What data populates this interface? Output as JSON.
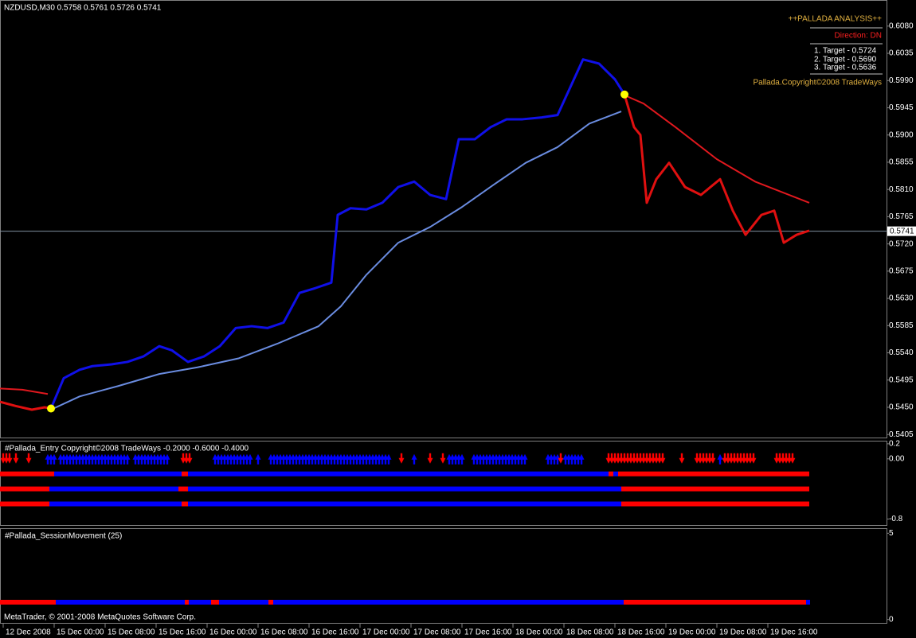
{
  "chart_data": [
    {
      "type": "line",
      "title": "NZDUSD,M30  0.5758 0.5761 0.5726 0.5741",
      "xlim": [
        -17,
        261.25
      ],
      "xticks": [
        {
          "value": -16,
          "label": "12 Dec 2008"
        },
        {
          "value": 0,
          "label": "15 Dec 00:00"
        },
        {
          "value": 16,
          "label": "15 Dec 08:00"
        },
        {
          "value": 32,
          "label": "15 Dec 16:00"
        },
        {
          "value": 48,
          "label": "16 Dec 00:00"
        },
        {
          "value": 64,
          "label": "16 Dec 08:00"
        },
        {
          "value": 80,
          "label": "16 Dec 16:00"
        },
        {
          "value": 96,
          "label": "17 Dec 00:00"
        },
        {
          "value": 112,
          "label": "17 Dec 08:00"
        },
        {
          "value": 128,
          "label": "17 Dec 16:00"
        },
        {
          "value": 144,
          "label": "18 Dec 00:00"
        },
        {
          "value": 160,
          "label": "18 Dec 08:00"
        },
        {
          "value": 176,
          "label": "18 Dec 16:00"
        },
        {
          "value": 192,
          "label": "19 Dec 00:00"
        },
        {
          "value": 208,
          "label": "19 Dec 08:00"
        },
        {
          "value": 224,
          "label": "19 Dec 16:00"
        }
      ],
      "ylim": [
        0.54,
        0.611
      ],
      "yticks": [
        {
          "value": 0.608,
          "label": "0.6080"
        },
        {
          "value": 0.6035,
          "label": "0.6035"
        },
        {
          "value": 0.599,
          "label": "0.5990"
        },
        {
          "value": 0.5945,
          "label": "0.5945"
        },
        {
          "value": 0.59,
          "label": "0.5900"
        },
        {
          "value": 0.5855,
          "label": "0.5855"
        },
        {
          "value": 0.581,
          "label": "0.5810"
        },
        {
          "value": 0.5765,
          "label": "0.5765"
        },
        {
          "value": 0.572,
          "label": "0.5720"
        },
        {
          "value": 0.5675,
          "label": "0.5675"
        },
        {
          "value": 0.563,
          "label": "0.5630"
        },
        {
          "value": 0.5585,
          "label": "0.5585"
        },
        {
          "value": 0.554,
          "label": "0.5540"
        },
        {
          "value": 0.5495,
          "label": "0.5495"
        },
        {
          "value": 0.545,
          "label": "0.5450"
        },
        {
          "value": 0.5405,
          "label": "0.5405"
        }
      ],
      "current_price": {
        "value": 0.5741,
        "label": "0.5741"
      },
      "series": [
        {
          "style": "price",
          "color": "#e01010",
          "x": [
            -17,
            -12,
            -7,
            -3,
            -1
          ],
          "values": [
            0.5459,
            0.5452,
            0.5446,
            0.545,
            0.5448
          ]
        },
        {
          "style": "price",
          "color": "#1010e8",
          "x": [
            -1,
            3,
            8,
            12,
            18,
            23,
            28,
            33,
            37,
            42,
            47,
            52,
            57,
            62,
            67,
            72,
            77,
            82,
            87,
            89,
            93,
            98,
            103,
            108,
            113,
            118,
            123,
            127,
            132,
            137,
            142,
            147,
            153,
            158,
            162,
            166,
            171,
            176,
            179
          ],
          "values": [
            0.5448,
            0.5498,
            0.5512,
            0.5518,
            0.5521,
            0.5525,
            0.5534,
            0.5551,
            0.5544,
            0.5525,
            0.5534,
            0.5551,
            0.5581,
            0.5584,
            0.5581,
            0.559,
            0.5639,
            0.5647,
            0.5656,
            0.5768,
            0.5779,
            0.5777,
            0.5788,
            0.5814,
            0.5823,
            0.5801,
            0.5794,
            0.5893,
            0.5893,
            0.5913,
            0.5926,
            0.5926,
            0.5929,
            0.5933,
            0.5979,
            0.6025,
            0.6018,
            0.5992,
            0.5967
          ]
        },
        {
          "style": "price",
          "color": "#e01010",
          "x": [
            179,
            182,
            184,
            186,
            189,
            193,
            198,
            203,
            209,
            213,
            217,
            222,
            226,
            229,
            233,
            237
          ],
          "values": [
            0.5967,
            0.5913,
            0.59,
            0.5788,
            0.5827,
            0.5854,
            0.5814,
            0.5801,
            0.5827,
            0.5775,
            0.5735,
            0.5768,
            0.5775,
            0.5722,
            0.5735,
            0.5742
          ]
        },
        {
          "style": "ma",
          "color": "#e0181e",
          "x": [
            -17,
            -10,
            -2
          ],
          "values": [
            0.5481,
            0.5479,
            0.5472
          ]
        },
        {
          "style": "ma",
          "color": "#6a8ce0",
          "x": [
            -1,
            8,
            20,
            33,
            45,
            58,
            70,
            83,
            90,
            98,
            108,
            118,
            128,
            138,
            148,
            158,
            168,
            178
          ],
          "values": [
            0.5446,
            0.5468,
            0.5485,
            0.5505,
            0.5516,
            0.5531,
            0.5555,
            0.5584,
            0.5617,
            0.5669,
            0.5722,
            0.5748,
            0.5781,
            0.5818,
            0.5854,
            0.588,
            0.5919,
            0.5939
          ]
        },
        {
          "style": "ma",
          "color": "#e0181e",
          "x": [
            178,
            185,
            195,
            208,
            220,
            237
          ],
          "values": [
            0.5968,
            0.5952,
            0.5913,
            0.586,
            0.5823,
            0.5788
          ]
        },
        {
          "style": "signal",
          "color": "#ffff00",
          "x": [
            -1,
            179
          ],
          "values": [
            0.5448,
            0.5967
          ]
        }
      ],
      "annotations": [
        {
          "text": "++PALLADA ANALYSIS++",
          "color": "#e0b040"
        },
        {
          "text": "Direction: DN",
          "color": "#ff2020"
        },
        {
          "text": "1. Target - 0.5724",
          "color": "#ffffff"
        },
        {
          "text": "2. Target - 0.5690",
          "color": "#ffffff"
        },
        {
          "text": "3. Target - 0.5636",
          "color": "#ffffff"
        },
        {
          "text": "Pallada.Copyright©2008 TradeWays",
          "color": "#e0b040"
        }
      ]
    },
    {
      "type": "signal_bars",
      "title": "#Pallada_Entry Copyright©2008 TradeWays -0.2000 -0.6000 -0.4000",
      "ylim": [
        -0.87,
        0.22
      ],
      "yticks": [
        0.2,
        {
          "value": 0,
          "label": "0.00"
        },
        -0.8
      ],
      "series": [
        {
          "value": -0.2,
          "segments": [
            {
              "from": -17,
              "to": 0,
              "color": "#ff0000"
            },
            {
              "from": 0,
              "to": 40,
              "color": "#0000ff"
            },
            {
              "from": 40,
              "to": 42,
              "color": "#ff0000"
            },
            {
              "from": 42,
              "to": 174,
              "color": "#0000ff"
            },
            {
              "from": 174,
              "to": 175.5,
              "color": "#ff0000"
            },
            {
              "from": 175.5,
              "to": 177,
              "color": "#0000ff"
            },
            {
              "from": 177,
              "to": 237,
              "color": "#ff0000"
            }
          ]
        },
        {
          "value": -0.4,
          "segments": [
            {
              "from": -17,
              "to": -1.5,
              "color": "#ff0000"
            },
            {
              "from": -1.5,
              "to": 39,
              "color": "#0000ff"
            },
            {
              "from": 39,
              "to": 42,
              "color": "#ff0000"
            },
            {
              "from": 42,
              "to": 178,
              "color": "#0000ff"
            },
            {
              "from": 178,
              "to": 237,
              "color": "#ff0000"
            }
          ]
        },
        {
          "value": -0.6,
          "segments": [
            {
              "from": -17,
              "to": -1.5,
              "color": "#ff0000"
            },
            {
              "from": -1.5,
              "to": 40,
              "color": "#0000ff"
            },
            {
              "from": 40,
              "to": 42,
              "color": "#ff0000"
            },
            {
              "from": 42,
              "to": 178,
              "color": "#0000ff"
            },
            {
              "from": 178,
              "to": 237,
              "color": "#ff0000"
            }
          ]
        }
      ],
      "arrows": [
        {
          "from": -16,
          "to": -14,
          "dir": "down",
          "color": "#ff0000"
        },
        {
          "from": -12,
          "to": -12,
          "dir": "down",
          "color": "#ff0000"
        },
        {
          "from": -8,
          "to": -8,
          "dir": "down",
          "color": "#ff0000"
        },
        {
          "from": -2,
          "to": 0.5,
          "dir": "up",
          "color": "#0000ff"
        },
        {
          "from": 2,
          "to": 17,
          "dir": "up",
          "color": "#0000ff"
        },
        {
          "from": 18,
          "to": 23,
          "dir": "up",
          "color": "#0000ff"
        },
        {
          "from": 25.5,
          "to": 35.5,
          "dir": "up",
          "color": "#0000ff"
        },
        {
          "from": 40.5,
          "to": 42.5,
          "dir": "down",
          "color": "#ff0000"
        },
        {
          "from": 50.5,
          "to": 61.75,
          "dir": "up",
          "color": "#0000ff"
        },
        {
          "from": 64,
          "to": 64,
          "dir": "up",
          "color": "#0000ff"
        },
        {
          "from": 68,
          "to": 105.5,
          "dir": "up",
          "color": "#0000ff"
        },
        {
          "from": 109,
          "to": 109,
          "dir": "down",
          "color": "#ff0000"
        },
        {
          "from": 113,
          "to": 113,
          "dir": "up",
          "color": "#0000ff"
        },
        {
          "from": 118,
          "to": 118,
          "dir": "down",
          "color": "#ff0000"
        },
        {
          "from": 122,
          "to": 122,
          "dir": "down",
          "color": "#ff0000"
        },
        {
          "from": 124,
          "to": 128,
          "dir": "up",
          "color": "#0000ff"
        },
        {
          "from": 131.75,
          "to": 148,
          "dir": "up",
          "color": "#0000ff"
        },
        {
          "from": 155,
          "to": 158,
          "dir": "up",
          "color": "#0000ff"
        },
        {
          "from": 159,
          "to": 159,
          "dir": "down",
          "color": "#ff0000"
        },
        {
          "from": 160.5,
          "to": 165.5,
          "dir": "up",
          "color": "#0000ff"
        },
        {
          "from": 174,
          "to": 191.75,
          "dir": "down",
          "color": "#ff0000"
        },
        {
          "from": 197,
          "to": 197,
          "dir": "down",
          "color": "#ff0000"
        },
        {
          "from": 201.75,
          "to": 207.5,
          "dir": "down",
          "color": "#ff0000"
        },
        {
          "from": 209,
          "to": 209,
          "dir": "up",
          "color": "#0000ff"
        },
        {
          "from": 210.5,
          "to": 220,
          "dir": "down",
          "color": "#ff0000"
        },
        {
          "from": 226.75,
          "to": 232.5,
          "dir": "down",
          "color": "#ff0000"
        }
      ]
    },
    {
      "type": "session_bar",
      "title": "#Pallada_SessionMovement (25)",
      "ylim": [
        -0.2,
        5.2
      ],
      "yticks": [
        5,
        0
      ],
      "series": [
        {
          "value": 1,
          "segments": [
            {
              "from": -17,
              "to": 0.5,
              "color": "#ff0000"
            },
            {
              "from": 0.5,
              "to": 41,
              "color": "#0000ff"
            },
            {
              "from": 41,
              "to": 42.25,
              "color": "#ff0000"
            },
            {
              "from": 42.25,
              "to": 49.25,
              "color": "#0000ff"
            },
            {
              "from": 49.25,
              "to": 51.75,
              "color": "#ff0000"
            },
            {
              "from": 51.75,
              "to": 67.25,
              "color": "#0000ff"
            },
            {
              "from": 67.25,
              "to": 68.75,
              "color": "#ff0000"
            },
            {
              "from": 68.75,
              "to": 178.75,
              "color": "#0000ff"
            },
            {
              "from": 178.75,
              "to": 236,
              "color": "#ff0000"
            },
            {
              "from": 236,
              "to": 237.25,
              "color": "#0000ff"
            }
          ]
        }
      ],
      "footer": "MetaTrader, © 2001-2008 MetaQuotes Software Corp."
    }
  ]
}
